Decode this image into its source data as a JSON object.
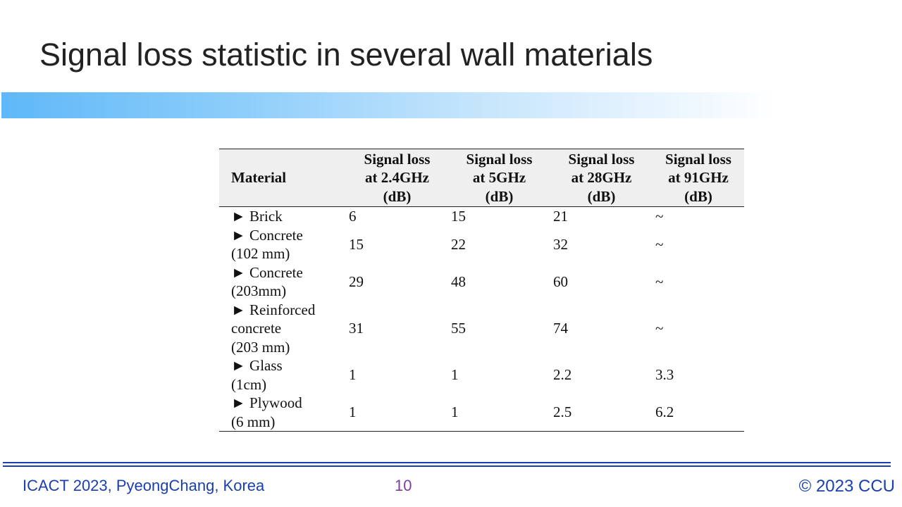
{
  "slide": {
    "title": "Signal loss statistic in several wall materials"
  },
  "table": {
    "headers": [
      "Material",
      "Signal loss at 2.4GHz (dB)",
      "Signal loss at 5GHz (dB)",
      "Signal loss at 28GHz (dB)",
      "Signal loss at 91GHz (dB)"
    ],
    "header_lines": [
      [
        "Material"
      ],
      [
        "Signal loss",
        "at 2.4GHz",
        "(dB)"
      ],
      [
        "Signal loss",
        "at 5GHz",
        "(dB)"
      ],
      [
        "Signal loss",
        "at 28GHz",
        "(dB)"
      ],
      [
        "Signal loss",
        "at 91GHz",
        "(dB)"
      ]
    ],
    "rows": [
      {
        "material_lines": [
          "► Brick"
        ],
        "values": [
          "6",
          "15",
          "21",
          "~"
        ]
      },
      {
        "material_lines": [
          "► Concrete",
          "(102 mm)"
        ],
        "values": [
          "15",
          "22",
          "32",
          "~"
        ]
      },
      {
        "material_lines": [
          "► Concrete",
          "(203mm)"
        ],
        "values": [
          "29",
          "48",
          "60",
          "~"
        ]
      },
      {
        "material_lines": [
          "► Reinforced",
          "concrete",
          "(203 mm)"
        ],
        "values": [
          "31",
          "55",
          "74",
          "~"
        ]
      },
      {
        "material_lines": [
          "► Glass",
          "(1cm)"
        ],
        "values": [
          "1",
          "1",
          "2.2",
          "3.3"
        ]
      },
      {
        "material_lines": [
          "► Plywood",
          "(6 mm)"
        ],
        "values": [
          "1",
          "1",
          "2.5",
          "6.2"
        ]
      }
    ]
  },
  "footer": {
    "conference": "ICACT 2023, PyeongChang, Korea",
    "page_number": "10",
    "copyright": "© 2023 CCU"
  },
  "colors": {
    "title_bar_start": "#5fb8f8",
    "footer_text": "#1a3fb0",
    "page_number": "#7a3fa0"
  }
}
